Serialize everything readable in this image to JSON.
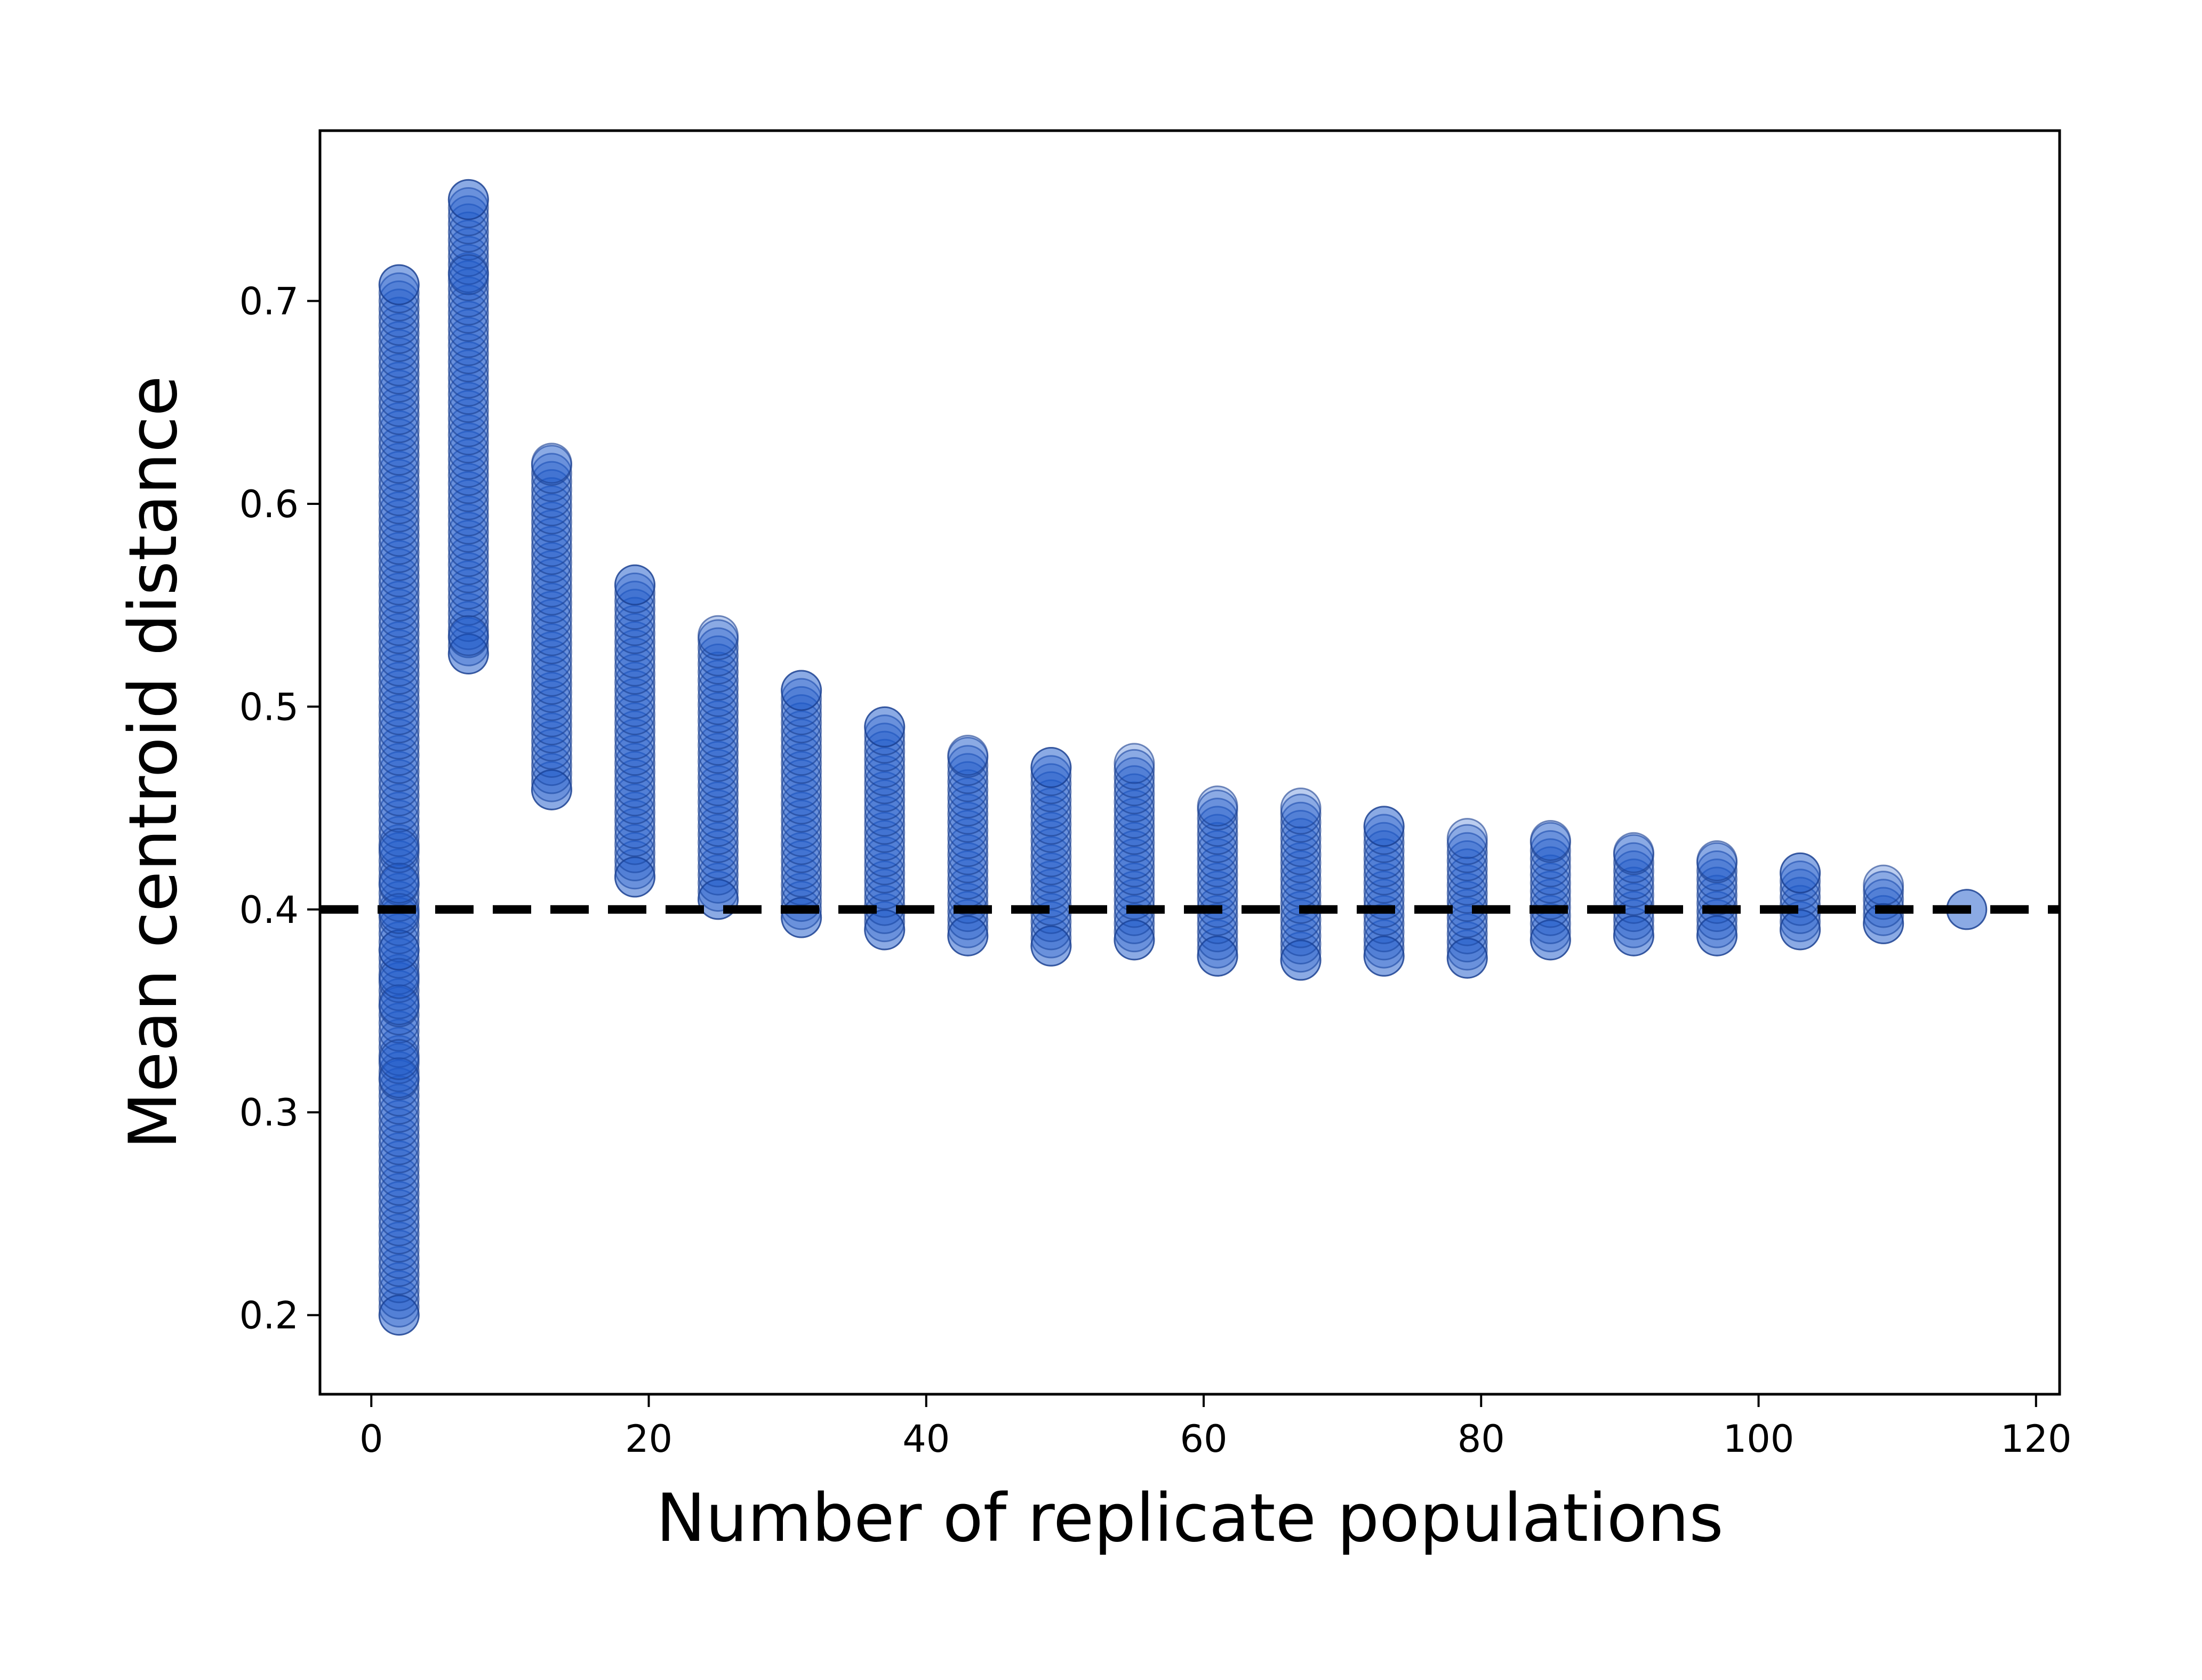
{
  "chart_data": {
    "type": "scatter",
    "title": "",
    "xlabel": "Number of replicate populations",
    "ylabel": "Mean centroid distance",
    "xlim": [
      -3.7,
      121.7
    ],
    "ylim": [
      0.161,
      0.784
    ],
    "x_ticks": [
      0,
      20,
      40,
      60,
      80,
      100,
      120
    ],
    "y_ticks": [
      0.2,
      0.3,
      0.4,
      0.5,
      0.6,
      0.7
    ],
    "x_tick_labels": [
      "0",
      "20",
      "40",
      "60",
      "80",
      "100",
      "120"
    ],
    "y_tick_labels": [
      "0.2",
      "0.3",
      "0.4",
      "0.5",
      "0.6",
      "0.7"
    ],
    "grid": false,
    "legend": "none",
    "reference_line": {
      "y": 0.4,
      "style": "dashed",
      "color": "#000000"
    },
    "marker_color": "#1f5bc9",
    "marker_edge_color": "#1a3f8f",
    "columns": [
      {
        "x": 2,
        "min": 0.2,
        "max": 0.708,
        "extra": [
          0.2,
          0.317,
          0.326,
          0.353,
          0.366,
          0.38,
          0.398,
          0.413,
          0.43,
          0.708
        ]
      },
      {
        "x": 7,
        "min": 0.526,
        "max": 0.75,
        "extra": [
          0.75,
          0.713,
          0.526,
          0.535
        ]
      },
      {
        "x": 13,
        "min": 0.459,
        "max": 0.62,
        "extra": [
          0.62,
          0.459
        ]
      },
      {
        "x": 19,
        "min": 0.416,
        "max": 0.56,
        "extra": [
          0.56,
          0.416
        ]
      },
      {
        "x": 25,
        "min": 0.405,
        "max": 0.535,
        "extra": [
          0.535,
          0.405
        ]
      },
      {
        "x": 31,
        "min": 0.396,
        "max": 0.508,
        "extra": [
          0.508,
          0.396
        ]
      },
      {
        "x": 37,
        "min": 0.39,
        "max": 0.49,
        "extra": [
          0.49,
          0.39
        ]
      },
      {
        "x": 43,
        "min": 0.387,
        "max": 0.476,
        "extra": [
          0.476,
          0.387
        ]
      },
      {
        "x": 49,
        "min": 0.382,
        "max": 0.47,
        "extra": [
          0.47,
          0.382
        ]
      },
      {
        "x": 55,
        "min": 0.385,
        "max": 0.472,
        "extra": [
          0.472,
          0.385
        ]
      },
      {
        "x": 61,
        "min": 0.377,
        "max": 0.451,
        "extra": [
          0.451,
          0.377
        ]
      },
      {
        "x": 67,
        "min": 0.375,
        "max": 0.45,
        "extra": [
          0.45,
          0.375
        ]
      },
      {
        "x": 73,
        "min": 0.377,
        "max": 0.441,
        "extra": [
          0.441,
          0.377
        ]
      },
      {
        "x": 79,
        "min": 0.376,
        "max": 0.435,
        "extra": [
          0.435,
          0.376
        ]
      },
      {
        "x": 85,
        "min": 0.385,
        "max": 0.434,
        "extra": [
          0.434,
          0.385
        ]
      },
      {
        "x": 91,
        "min": 0.387,
        "max": 0.428,
        "extra": [
          0.428,
          0.387
        ]
      },
      {
        "x": 97,
        "min": 0.387,
        "max": 0.424,
        "extra": [
          0.424,
          0.387
        ]
      },
      {
        "x": 103,
        "min": 0.39,
        "max": 0.418,
        "extra": [
          0.418,
          0.39
        ]
      },
      {
        "x": 109,
        "min": 0.393,
        "max": 0.412,
        "extra": [
          0.412,
          0.393
        ]
      },
      {
        "x": 115,
        "min": 0.4,
        "max": 0.4,
        "extra": [
          0.4
        ]
      }
    ]
  }
}
